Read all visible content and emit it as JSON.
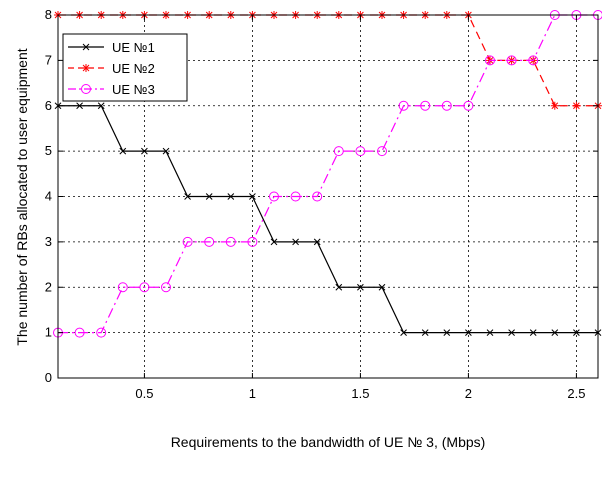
{
  "chart_data": {
    "type": "line",
    "title": "",
    "xlabel": "Requirements to the bandwidth of UE № 3, (Mbps)",
    "ylabel": "The number of RBs allocated to user equipment",
    "xlim": [
      0.1,
      2.6
    ],
    "ylim": [
      0,
      8
    ],
    "x_ticks": [
      0.5,
      1,
      1.5,
      2,
      2.5
    ],
    "x_tick_labels": [
      "0.5",
      "1",
      "1.5",
      "2",
      "2.5"
    ],
    "y_ticks": [
      0,
      1,
      2,
      3,
      4,
      5,
      6,
      7,
      8
    ],
    "y_tick_labels": [
      "0",
      "1",
      "2",
      "3",
      "4",
      "5",
      "6",
      "7",
      "8"
    ],
    "grid": true,
    "legend_position": "top-left",
    "x": [
      0.1,
      0.2,
      0.3,
      0.4,
      0.5,
      0.6,
      0.7,
      0.8,
      0.9,
      1.0,
      1.1,
      1.2,
      1.3,
      1.4,
      1.5,
      1.6,
      1.7,
      1.8,
      1.9,
      2.0,
      2.1,
      2.2,
      2.3,
      2.4,
      2.5,
      2.6
    ],
    "series": [
      {
        "name": "UE №1",
        "color": "#000000",
        "marker": "x",
        "line_style": "solid",
        "values": [
          6,
          6,
          6,
          5,
          5,
          5,
          4,
          4,
          4,
          4,
          3,
          3,
          3,
          2,
          2,
          2,
          1,
          1,
          1,
          1,
          1,
          1,
          1,
          1,
          1,
          1
        ]
      },
      {
        "name": "UE №2",
        "color": "#ff0000",
        "marker": "*",
        "line_style": "dashed",
        "values": [
          8,
          8,
          8,
          8,
          8,
          8,
          8,
          8,
          8,
          8,
          8,
          8,
          8,
          8,
          8,
          8,
          8,
          8,
          8,
          8,
          7,
          7,
          7,
          6,
          6,
          6
        ]
      },
      {
        "name": "UE №3",
        "color": "#ff00ff",
        "marker": "o",
        "line_style": "dashdot",
        "values": [
          1,
          1,
          1,
          2,
          2,
          2,
          3,
          3,
          3,
          3,
          4,
          4,
          4,
          5,
          5,
          5,
          6,
          6,
          6,
          6,
          7,
          7,
          7,
          8,
          8,
          8
        ]
      }
    ]
  }
}
